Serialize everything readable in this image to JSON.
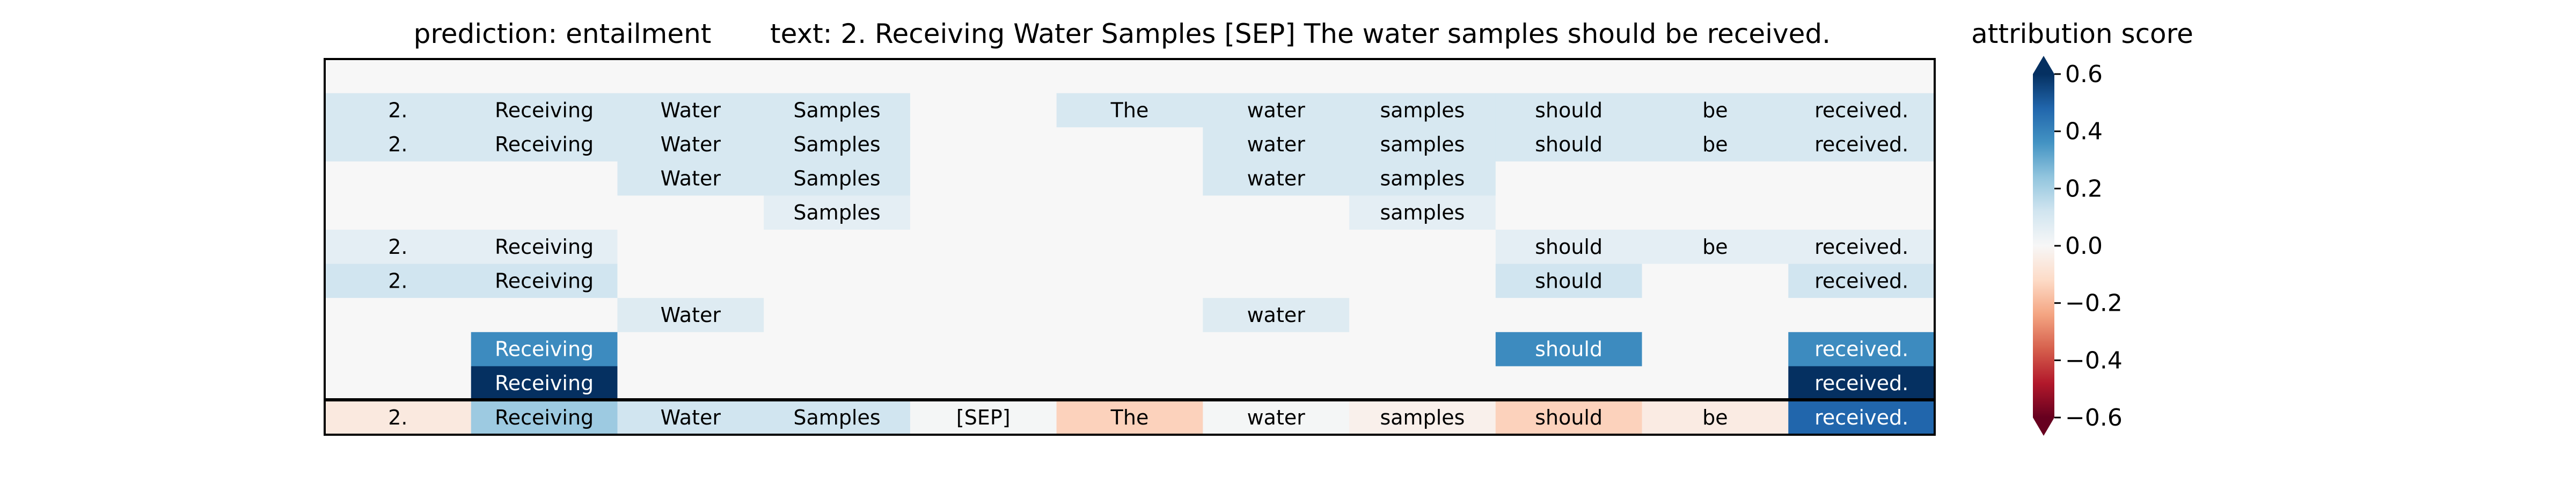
{
  "chart_data": {
    "type": "heatmap",
    "title_prediction": "prediction:  entailment",
    "title_text": "text:  2. Receiving Water Samples [SEP] The water samples should be received.",
    "colorbar_label": "attribution score",
    "colorbar_ticks": [
      "0.6",
      "0.4",
      "0.2",
      "0.0",
      "−0.2",
      "−0.4",
      "−0.6"
    ],
    "colorbar_tick_values": [
      0.6,
      0.4,
      0.2,
      0.0,
      -0.2,
      -0.4,
      -0.6
    ],
    "vmin": -0.6,
    "vmax": 0.6,
    "colormap": "RdBu",
    "tokens": [
      "2.",
      "Receiving",
      "Water",
      "Samples",
      "[SEP]",
      "The",
      "water",
      "samples",
      "should",
      "be",
      "received."
    ],
    "rows": [
      {
        "labels": [
          "",
          "",
          "",
          "",
          "",
          "",
          "",
          "",
          "",
          "",
          ""
        ],
        "values": [
          0,
          0,
          0,
          0,
          0,
          0,
          0,
          0,
          0,
          0,
          0
        ]
      },
      {
        "labels": [
          "2.",
          "Receiving",
          "Water",
          "Samples",
          "",
          "The",
          "water",
          "samples",
          "should",
          "be",
          "received."
        ],
        "values": [
          0.1,
          0.1,
          0.1,
          0.1,
          0,
          0.1,
          0.1,
          0.1,
          0.1,
          0.1,
          0.1
        ]
      },
      {
        "labels": [
          "2.",
          "Receiving",
          "Water",
          "Samples",
          "",
          "",
          "water",
          "samples",
          "should",
          "be",
          "received."
        ],
        "values": [
          0.1,
          0.1,
          0.1,
          0.1,
          0,
          0,
          0.1,
          0.1,
          0.1,
          0.1,
          0.1
        ]
      },
      {
        "labels": [
          "",
          "",
          "Water",
          "Samples",
          "",
          "",
          "water",
          "samples",
          "",
          "",
          ""
        ],
        "values": [
          0,
          0,
          0.1,
          0.1,
          0,
          0,
          0.1,
          0.1,
          0,
          0,
          0
        ]
      },
      {
        "labels": [
          "",
          "",
          "",
          "Samples",
          "",
          "",
          "",
          "samples",
          "",
          "",
          ""
        ],
        "values": [
          0,
          0,
          0,
          0.06,
          0,
          0,
          0,
          0.06,
          0,
          0,
          0
        ]
      },
      {
        "labels": [
          "2.",
          "Receiving",
          "",
          "",
          "",
          "",
          "",
          "",
          "should",
          "be",
          "received."
        ],
        "values": [
          0.06,
          0.06,
          0,
          0,
          0,
          0,
          0,
          0,
          0.06,
          0.06,
          0.06
        ]
      },
      {
        "labels": [
          "2.",
          "Receiving",
          "",
          "",
          "",
          "",
          "",
          "",
          "should",
          "",
          "received."
        ],
        "values": [
          0.12,
          0.12,
          0,
          0,
          0,
          0,
          0,
          0,
          0.12,
          0,
          0.12
        ]
      },
      {
        "labels": [
          "",
          "",
          "Water",
          "",
          "",
          "",
          "water",
          "",
          "",
          "",
          ""
        ],
        "values": [
          0,
          0,
          0.08,
          0,
          0,
          0,
          0.08,
          0,
          0,
          0,
          0
        ]
      },
      {
        "labels": [
          "",
          "Receiving",
          "",
          "",
          "",
          "",
          "",
          "",
          "should",
          "",
          "received."
        ],
        "values": [
          0,
          0.38,
          0,
          0,
          0,
          0,
          0,
          0,
          0.38,
          0,
          0.38
        ]
      },
      {
        "labels": [
          "",
          "Receiving",
          "",
          "",
          "",
          "",
          "",
          "",
          "",
          "",
          "received."
        ],
        "values": [
          0,
          0.6,
          0,
          0,
          0,
          0,
          0,
          0,
          0,
          0,
          0.6
        ]
      }
    ],
    "summary_row": {
      "labels": [
        "2.",
        "Receiving",
        "Water",
        "Samples",
        "[SEP]",
        "The",
        "water",
        "samples",
        "should",
        "be",
        "received."
      ],
      "values": [
        -0.06,
        0.22,
        0.12,
        0.12,
        0.01,
        -0.14,
        0.01,
        -0.03,
        -0.14,
        -0.05,
        0.48
      ]
    }
  }
}
